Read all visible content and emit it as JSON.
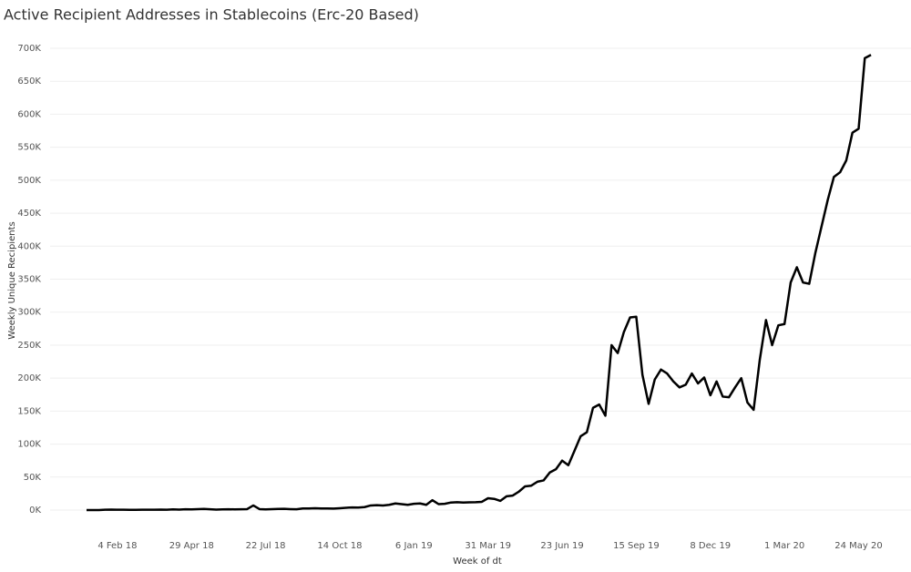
{
  "chart_data": {
    "type": "line",
    "title": "Active Recipient Addresses in Stablecoins (Erc-20 Based)",
    "x_label": "Week of dt",
    "y_label": "Weekly Unique Recipients",
    "categories": [
      null,
      null,
      null,
      null,
      null,
      "4 Feb 18",
      null,
      null,
      null,
      null,
      null,
      null,
      null,
      null,
      null,
      null,
      null,
      "29 Apr 18",
      null,
      null,
      null,
      null,
      null,
      null,
      null,
      null,
      null,
      null,
      null,
      "22 Jul 18",
      null,
      null,
      null,
      null,
      null,
      null,
      null,
      null,
      null,
      null,
      null,
      "14 Oct 18",
      null,
      null,
      null,
      null,
      null,
      null,
      null,
      null,
      null,
      null,
      null,
      "6 Jan 19",
      null,
      null,
      null,
      null,
      null,
      null,
      null,
      null,
      null,
      null,
      null,
      "31 Mar 19",
      null,
      null,
      null,
      null,
      null,
      null,
      null,
      null,
      null,
      null,
      null,
      "23 Jun 19",
      null,
      null,
      null,
      null,
      null,
      null,
      null,
      null,
      null,
      null,
      null,
      "15 Sep 19",
      null,
      null,
      null,
      null,
      null,
      null,
      null,
      null,
      null,
      null,
      null,
      "8 Dec 19",
      null,
      null,
      null,
      null,
      null,
      null,
      null,
      null,
      null,
      null,
      null,
      "1 Mar 20",
      null,
      null,
      null,
      null,
      null,
      null,
      null,
      null,
      null,
      null,
      null,
      "24 May 20",
      null,
      null
    ],
    "series": [
      {
        "name": "Weekly Unique Recipients",
        "color": "#000000",
        "values": [
          0,
          0,
          0,
          500,
          800,
          500,
          500,
          300,
          300,
          500,
          500,
          600,
          800,
          600,
          1000,
          800,
          1200,
          1000,
          1500,
          1800,
          1200,
          800,
          1000,
          1300,
          1000,
          1200,
          1500,
          7000,
          1500,
          1000,
          1500,
          1800,
          2000,
          1500,
          1200,
          2500,
          2500,
          2800,
          2500,
          2500,
          2300,
          2800,
          3500,
          4000,
          3800,
          4500,
          7000,
          7500,
          7000,
          8000,
          10000,
          9000,
          8000,
          9500,
          10000,
          8000,
          15000,
          9000,
          9500,
          11500,
          12000,
          11500,
          11800,
          12000,
          12500,
          18000,
          17000,
          14000,
          21000,
          22000,
          28000,
          36000,
          37000,
          43000,
          45000,
          57000,
          62000,
          75000,
          68000,
          90000,
          112000,
          118000,
          155000,
          160000,
          143000,
          250000,
          238000,
          270000,
          292000,
          293000,
          205000,
          161000,
          198000,
          213000,
          207000,
          195000,
          186000,
          190000,
          207000,
          192000,
          201000,
          174000,
          195000,
          172000,
          171000,
          186000,
          200000,
          163000,
          152000,
          228000,
          288000,
          250000,
          280000,
          282000,
          345000,
          368000,
          345000,
          343000,
          390000,
          430000,
          470000,
          505000,
          512000,
          530000,
          572000,
          578000,
          685000,
          690000
        ]
      }
    ],
    "ylim": [
      -40000,
      720000
    ],
    "yticks": [
      {
        "value": 0,
        "label": "0K"
      },
      {
        "value": 50000,
        "label": "50K"
      },
      {
        "value": 100000,
        "label": "100K"
      },
      {
        "value": 150000,
        "label": "150K"
      },
      {
        "value": 200000,
        "label": "200K"
      },
      {
        "value": 250000,
        "label": "250K"
      },
      {
        "value": 300000,
        "label": "300K"
      },
      {
        "value": 350000,
        "label": "350K"
      },
      {
        "value": 400000,
        "label": "400K"
      },
      {
        "value": 450000,
        "label": "450K"
      },
      {
        "value": 500000,
        "label": "500K"
      },
      {
        "value": 550000,
        "label": "550K"
      },
      {
        "value": 600000,
        "label": "600K"
      },
      {
        "value": 650000,
        "label": "650K"
      },
      {
        "value": 700000,
        "label": "700K"
      }
    ],
    "grid": true
  }
}
